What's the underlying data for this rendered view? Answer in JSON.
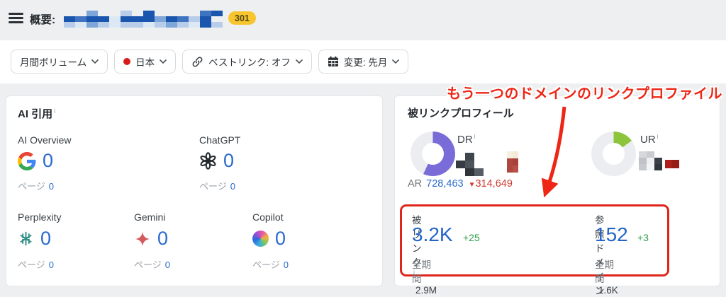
{
  "header": {
    "title": "概要:",
    "badge": "301"
  },
  "filters": [
    {
      "label": "月間ボリューム"
    },
    {
      "label": "日本"
    },
    {
      "label": "ベストリンク: オフ"
    },
    {
      "label": "変更: 先月"
    }
  ],
  "annotation": {
    "text": "もう一つのドメインのリンクプロファイル"
  },
  "ai_card": {
    "title": "AI 引用",
    "pages_label": "ページ",
    "items": [
      {
        "name": "AI Overview",
        "icon": "google-icon",
        "value": "0",
        "pages": "0"
      },
      {
        "name": "ChatGPT",
        "icon": "openai-icon",
        "value": "0",
        "pages": "0"
      },
      {
        "name": "Perplexity",
        "icon": "perplexity-icon",
        "value": "0",
        "pages": "0"
      },
      {
        "name": "Gemini",
        "icon": "gemini-icon",
        "value": "0",
        "pages": "0"
      },
      {
        "name": "Copilot",
        "icon": "copilot-icon",
        "value": "0",
        "pages": "0"
      }
    ]
  },
  "backlink_card": {
    "title": "被リンクプロフィール",
    "dr": {
      "label": "DR",
      "percent": 57,
      "color": "#7a6cd8"
    },
    "ur": {
      "label": "UR",
      "percent": 15,
      "color": "#8cc43c"
    },
    "ar": {
      "label": "AR",
      "value": "728,463",
      "down_arrow": "▼",
      "change": "314,649"
    },
    "metrics": [
      {
        "label": "被リンク",
        "value": "3.2K",
        "change": "+25",
        "alltime_label": "全期間",
        "alltime_value": "2.9M"
      },
      {
        "label": "参照ドメイン",
        "value": "152",
        "change": "+3",
        "alltime_label": "全期間",
        "alltime_value": "1.6K"
      }
    ]
  },
  "chart_data": [
    {
      "type": "donut",
      "title": "DR",
      "labels": [
        "filled",
        "rest"
      ],
      "values": [
        57,
        43
      ],
      "colors": [
        "#7a6cd8",
        "#ecedf0"
      ],
      "note": "numeric DR value redacted in screenshot"
    },
    {
      "type": "donut",
      "title": "UR",
      "labels": [
        "filled",
        "rest"
      ],
      "values": [
        15,
        85
      ],
      "colors": [
        "#8cc43c",
        "#ecedf0"
      ],
      "note": "numeric UR value redacted in screenshot"
    }
  ],
  "colors": {
    "accent_blue": "#2a6bce",
    "green_change": "#2e9e47",
    "red_change": "#cf3a30",
    "annotation_red": "#ed2615",
    "badge_yellow": "#f7c62e",
    "dr_purple": "#7a6cd8",
    "ur_green": "#8cc43c"
  },
  "mosaics": {
    "domain": {
      "cw": 16,
      "ch": 8,
      "rows": [
        [
          "",
          "",
          "#7fa6d8",
          "",
          "",
          "#b7cdea",
          "",
          "#1a56ad",
          "",
          "",
          "",
          "",
          "#3f74c1",
          "#1a56ad"
        ],
        [
          "#1a56ad",
          "#3f74c1",
          "#1a56ad",
          "#1a56ad",
          "#dde8f5",
          "#1a56ad",
          "#1a56ad",
          "#1a56ad",
          "#7fa6d8",
          "#1a56ad",
          "#3f74c1",
          "#b7cdea",
          "#1a56ad",
          ""
        ],
        [
          "#b7cdea",
          "#dde8f5",
          "#7fa6d8",
          "#b7cdea",
          "#dde8f5",
          "#b7cdea",
          "#b7cdea",
          "#dde8f5",
          "#b7cdea",
          "#7fa6d8",
          "#b7cdea",
          "#dde8f5",
          "#1a56ad",
          "#b7cdea"
        ]
      ]
    },
    "dr_value": {
      "cw": 13,
      "ch": 11,
      "rows": [
        [
          "",
          "#40464d",
          ""
        ],
        [
          "#363c43",
          "#4d545b",
          ""
        ],
        [
          "",
          "#2f353b",
          "#565d64"
        ]
      ]
    },
    "dr_change": {
      "cw": 8,
      "ch": 10,
      "rows": [
        [
          "#f7f0e0",
          "#f3ead8"
        ],
        [
          "#b0473e",
          "#a8423a"
        ],
        [
          "#b0473e",
          "#b55147"
        ]
      ]
    },
    "ur_value": {
      "cw": 11,
      "ch": 9,
      "rows": [
        [
          "#d6d9dc",
          "#c9ccd0",
          ""
        ],
        [
          "#bfc3c7",
          "#eef0f1",
          "#394047"
        ],
        [
          "#c6cacd",
          "#f3f4f5",
          "#2f363c"
        ]
      ]
    },
    "ur_change": {
      "cw": 10,
      "ch": 12,
      "rows": [
        [
          "#ab201a",
          "#971c15"
        ]
      ]
    }
  }
}
